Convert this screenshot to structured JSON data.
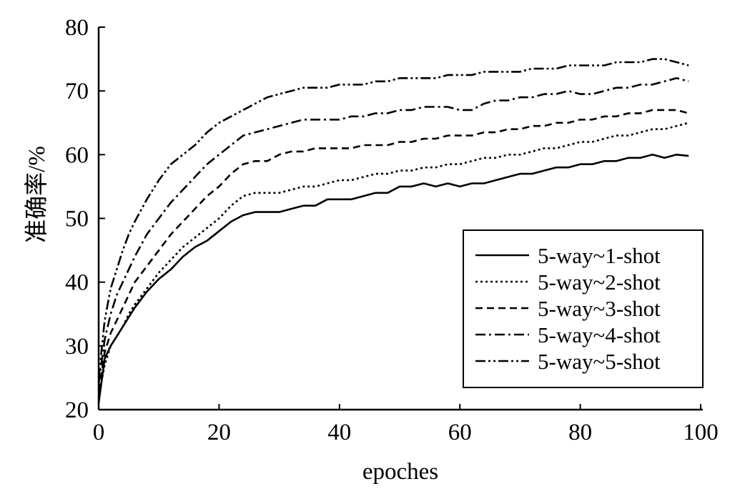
{
  "chart_data": {
    "type": "line",
    "title": "",
    "xlabel": "epoches",
    "ylabel": "准确率/%",
    "xlim": [
      0,
      100
    ],
    "ylim": [
      20,
      80
    ],
    "xticks": [
      "0",
      "20",
      "40",
      "60",
      "80",
      "100"
    ],
    "yticks": [
      "20",
      "30",
      "40",
      "50",
      "60",
      "70",
      "80"
    ],
    "grid": false,
    "legend_position": "bottom-right",
    "x": [
      0,
      1,
      2,
      3,
      4,
      5,
      6,
      8,
      10,
      12,
      14,
      16,
      18,
      20,
      22,
      24,
      26,
      28,
      30,
      32,
      34,
      36,
      38,
      40,
      42,
      44,
      46,
      48,
      50,
      52,
      54,
      56,
      58,
      60,
      62,
      64,
      66,
      68,
      70,
      72,
      74,
      76,
      78,
      80,
      82,
      84,
      86,
      88,
      90,
      92,
      94,
      96,
      98
    ],
    "series": [
      {
        "name": "5-way~1-shot",
        "dash": "solid",
        "values": [
          21,
          28,
          30,
          31.5,
          33,
          34.5,
          36,
          38.5,
          40.5,
          42,
          44,
          45.5,
          46.5,
          48,
          49.5,
          50.5,
          51,
          51,
          51,
          51.5,
          52,
          52,
          53,
          53,
          53,
          53.5,
          54,
          54,
          55,
          55,
          55.5,
          55,
          55.5,
          55,
          55.5,
          55.5,
          56,
          56.5,
          57,
          57,
          57.5,
          58,
          58,
          58.5,
          58.5,
          59,
          59,
          59.5,
          59.5,
          60,
          59.5,
          60,
          59.8
        ]
      },
      {
        "name": "5-way~2-shot",
        "dash": "dotted",
        "values": [
          22,
          27,
          30,
          31.5,
          33,
          35,
          36.5,
          39,
          41.5,
          43.5,
          45.5,
          47,
          48.5,
          50,
          52,
          53.5,
          54,
          54,
          54,
          54.5,
          55,
          55,
          55.5,
          56,
          56,
          56.5,
          57,
          57,
          57.5,
          57.5,
          58,
          58,
          58.5,
          58.5,
          59,
          59.5,
          59.5,
          60,
          60,
          60.5,
          61,
          61,
          61.5,
          62,
          62,
          62.5,
          63,
          63,
          63.5,
          64,
          64,
          64.5,
          65
        ]
      },
      {
        "name": "5-way~3-shot",
        "dash": "dashed",
        "values": [
          23,
          29,
          32,
          34,
          36,
          38,
          40,
          42.5,
          45,
          47.5,
          49.5,
          51.5,
          53.5,
          55,
          57,
          58.5,
          59,
          59,
          60,
          60.5,
          60.5,
          61,
          61,
          61,
          61,
          61.5,
          61.5,
          61.5,
          62,
          62,
          62.5,
          62.5,
          63,
          63,
          63,
          63.5,
          63.5,
          64,
          64,
          64.5,
          64.5,
          65,
          65,
          65.5,
          65.5,
          66,
          66,
          66.5,
          66.5,
          67,
          67,
          67,
          66.5
        ]
      },
      {
        "name": "5-way~4-shot",
        "dash": "dashdot",
        "values": [
          24,
          31,
          35,
          38,
          40,
          42,
          44,
          47.5,
          50,
          52.5,
          54.5,
          56.5,
          58.5,
          60,
          61.5,
          63,
          63.5,
          64,
          64.5,
          65,
          65.5,
          65.5,
          65.5,
          65.5,
          66,
          66,
          66.5,
          66.5,
          67,
          67,
          67.5,
          67.5,
          67.5,
          67,
          67,
          68,
          68.5,
          68.5,
          69,
          69,
          69.5,
          69.5,
          70,
          69.5,
          69.5,
          70,
          70.5,
          70.5,
          71,
          71,
          71.5,
          72,
          71.5
        ]
      },
      {
        "name": "5-way~5-shot",
        "dash": "dashdotdot",
        "values": [
          25,
          34,
          39,
          42,
          45,
          47.5,
          49.5,
          53,
          56,
          58.5,
          60,
          61.5,
          63.5,
          65,
          66,
          67,
          68,
          69,
          69.5,
          70,
          70.5,
          70.5,
          70.5,
          71,
          71,
          71,
          71.5,
          71.5,
          72,
          72,
          72,
          72,
          72.5,
          72.5,
          72.5,
          73,
          73,
          73,
          73,
          73.5,
          73.5,
          73.5,
          74,
          74,
          74,
          74,
          74.5,
          74.5,
          74.5,
          75,
          75,
          74.5,
          74
        ]
      }
    ]
  }
}
